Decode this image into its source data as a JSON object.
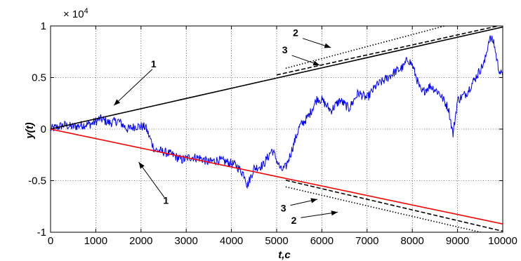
{
  "chart_data": {
    "type": "line",
    "xlabel": "t,c",
    "ylabel": "y(t)",
    "xlim": [
      0,
      10000
    ],
    "ylim": [
      -10000,
      10000
    ],
    "x_ticks": [
      0,
      1000,
      2000,
      3000,
      4000,
      5000,
      6000,
      7000,
      8000,
      9000,
      10000
    ],
    "x_tick_labels": [
      "0",
      "1000",
      "2000",
      "3000",
      "4000",
      "5000",
      "6000",
      "7000",
      "8000",
      "9000",
      "10000"
    ],
    "y_ticks": [
      -10000,
      -5000,
      0,
      5000,
      10000
    ],
    "y_tick_labels": [
      "-1",
      "-0.5",
      "0",
      "0.5",
      "1"
    ],
    "y_exponent_base": "× 10",
    "y_exponent_power": "4",
    "grid": true,
    "legend": "none",
    "series": [
      {
        "style": "solid",
        "color": "#0000ff",
        "x": [
          0,
          300,
          500,
          700,
          900,
          1100,
          1300,
          1500,
          1700,
          1900,
          2100,
          2300,
          2500,
          2700,
          2900,
          3100,
          3300,
          3500,
          3700,
          3900,
          4100,
          4300,
          4350,
          4500,
          4700,
          4900,
          5000,
          5100,
          5200,
          5300,
          5500,
          5700,
          5900,
          6000,
          6200,
          6400,
          6600,
          6800,
          7000,
          7200,
          7400,
          7600,
          7800,
          7900,
          8000,
          8200,
          8400,
          8600,
          8800,
          8900,
          9000,
          9200,
          9400,
          9600,
          9700,
          9800,
          9900,
          10000
        ],
        "y": [
          0,
          400,
          200,
          400,
          500,
          1000,
          600,
          800,
          0,
          300,
          200,
          -2000,
          -2200,
          -2500,
          -3000,
          -2700,
          -2800,
          -3200,
          -3000,
          -3200,
          -3500,
          -4500,
          -5500,
          -3800,
          -3500,
          -2000,
          -3000,
          -4000,
          -3700,
          -2500,
          200,
          1200,
          3000,
          2800,
          1800,
          2800,
          2000,
          3500,
          3000,
          4200,
          4800,
          5500,
          6000,
          6800,
          6200,
          3500,
          4200,
          3500,
          2000,
          -500,
          2800,
          3500,
          5000,
          6500,
          8800,
          8500,
          6000,
          5000
        ]
      },
      {
        "label": "1",
        "style": "solid",
        "color": "#000000",
        "x": [
          0,
          10000
        ],
        "y": [
          0,
          9900
        ]
      },
      {
        "label": "1",
        "style": "solid",
        "color": "#ff0000",
        "x": [
          0,
          10000
        ],
        "y": [
          0,
          -9200
        ]
      },
      {
        "label": "3",
        "style": "dashed",
        "color": "#000000",
        "x": [
          5000,
          10000
        ],
        "y": [
          5250,
          10100
        ]
      },
      {
        "label": "2",
        "style": "dotted",
        "color": "#000000",
        "x": [
          5200,
          10000
        ],
        "y": [
          5900,
          11500
        ]
      },
      {
        "label": "3",
        "style": "dashed",
        "color": "#000000",
        "x": [
          5200,
          10000
        ],
        "y": [
          -4950,
          -9900
        ]
      },
      {
        "label": "2",
        "style": "dotted",
        "color": "#000000",
        "x": [
          5200,
          10000
        ],
        "y": [
          -5600,
          -10500
        ]
      }
    ],
    "annotations": [
      {
        "text": "1",
        "x": 2280,
        "y": 6000,
        "arrow_to": [
          1400,
          2300
        ]
      },
      {
        "text": "1",
        "x": 2550,
        "y": -7250,
        "arrow_to": [
          1950,
          -3200
        ]
      },
      {
        "text": "2",
        "x": 5420,
        "y": 9000,
        "arrow_to": [
          6200,
          7900
        ]
      },
      {
        "text": "3",
        "x": 5180,
        "y": 7350,
        "arrow_to": [
          5950,
          6200
        ]
      },
      {
        "text": "3",
        "x": 5150,
        "y": -8000,
        "arrow_to": [
          5900,
          -6800
        ]
      },
      {
        "text": "2",
        "x": 5380,
        "y": -9200,
        "arrow_to": [
          6350,
          -8050
        ]
      }
    ]
  }
}
